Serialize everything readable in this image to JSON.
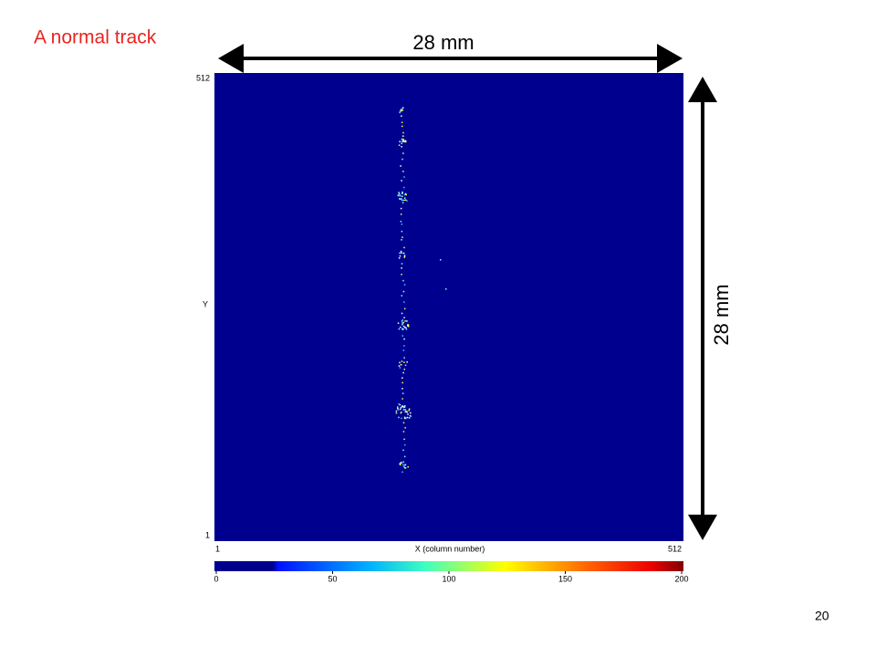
{
  "slide": {
    "title": "A normal track",
    "page_number": "20"
  },
  "dimensions": {
    "width_label": "28 mm",
    "height_label": "28 mm"
  },
  "image": {
    "x_label": "X (column number)",
    "y_label": "Y",
    "xlim": [
      1,
      512
    ],
    "xticks": [
      1,
      512
    ],
    "ylim": [
      1,
      512
    ],
    "yticks": [
      1,
      512
    ]
  },
  "colorbar": {
    "lim": [
      0,
      200
    ],
    "ticks": [
      0,
      50,
      100,
      150,
      200
    ]
  }
}
